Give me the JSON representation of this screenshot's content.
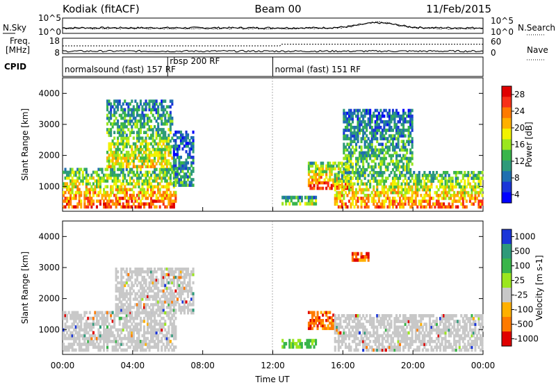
{
  "header": {
    "station": "Kodiak (fitACF)",
    "beam": "Beam 00",
    "date": "11/Feb/2015"
  },
  "summary": {
    "nsky_label": "N.Sky",
    "nsearch_label": "N.Search",
    "freq_label_line1": "Freq.",
    "freq_label_line2": "[MHz]",
    "nave_label": "Nave",
    "cpid_label": "CPID",
    "nsky_ticks": [
      "10^5",
      "10^0"
    ],
    "nsearch_ticks": [
      "10^5",
      "10^0"
    ],
    "freq_ticks": [
      "18",
      "8"
    ],
    "nave_ticks": [
      "60",
      "0"
    ],
    "cpid_segments": [
      {
        "label": "normalsound (fast) 157 RF",
        "start_hour": 0.0,
        "end_hour": 6.0
      },
      {
        "label": "rbsp 200 RF",
        "start_hour": 6.0,
        "end_hour": 12.0
      },
      {
        "label": "normal (fast) 151 RF",
        "start_hour": 12.0,
        "end_hour": 24.0
      }
    ]
  },
  "chart_data": [
    {
      "type": "heatmap",
      "title": "",
      "ylabel": "Slant Range [km]",
      "xlabel": "",
      "ylim": [
        200,
        4500
      ],
      "y_ticks": [
        "1000",
        "2000",
        "3000",
        "4000"
      ],
      "colorbar_label": "Power [dB]",
      "colorbar_ticks": [
        "28",
        "24",
        "20",
        "16",
        "12",
        "8",
        "4"
      ],
      "colorbar_colors": [
        "#e00000",
        "#f83018",
        "#ff7a00",
        "#ffb000",
        "#f2f200",
        "#9be61e",
        "#39b54a",
        "#2e9a7a",
        "#1f6fb0",
        "#1a35d8",
        "#0000ff"
      ],
      "regions": [
        {
          "t0": 0.0,
          "t1": 6.5,
          "r0": 300,
          "r1": 1600,
          "level": 0.85
        },
        {
          "t0": 2.5,
          "t1": 6.3,
          "r0": 1600,
          "r1": 3800,
          "level": 0.6
        },
        {
          "t0": 6.3,
          "t1": 7.5,
          "r0": 1000,
          "r1": 2800,
          "level": 0.35
        },
        {
          "t0": 12.5,
          "t1": 14.5,
          "r0": 400,
          "r1": 700,
          "level": 0.55
        },
        {
          "t0": 14.0,
          "t1": 16.5,
          "r0": 900,
          "r1": 1800,
          "level": 0.9
        },
        {
          "t0": 15.5,
          "t1": 24.0,
          "r0": 300,
          "r1": 1500,
          "level": 0.8
        },
        {
          "t0": 16.0,
          "t1": 20.0,
          "r0": 1500,
          "r1": 3500,
          "level": 0.45
        }
      ]
    },
    {
      "type": "heatmap",
      "title": "",
      "ylabel": "Slant Range [km]",
      "xlabel": "Time UT",
      "ylim": [
        200,
        4500
      ],
      "y_ticks": [
        "1000",
        "2000",
        "3000",
        "4000"
      ],
      "x_ticks": [
        "00:00",
        "04:00",
        "08:00",
        "12:00",
        "16:00",
        "20:00",
        "00:00"
      ],
      "colorbar_label": "Velocity [m s-1]",
      "colorbar_ticks": [
        "1000",
        "500",
        "100",
        "25",
        "-25",
        "-100",
        "-500",
        "-1000"
      ],
      "colorbar_colors": [
        "#1a35d8",
        "#2e9a7a",
        "#39b54a",
        "#9be61e",
        "#c8c8c8",
        "#ffb000",
        "#ff7a00",
        "#e00000"
      ],
      "regions": [
        {
          "t0": 0.0,
          "t1": 6.5,
          "r0": 300,
          "r1": 1600,
          "level": "ground"
        },
        {
          "t0": 3.0,
          "t1": 7.5,
          "r0": 1500,
          "r1": 3000,
          "level": "ground"
        },
        {
          "t0": 12.5,
          "t1": 14.5,
          "r0": 400,
          "r1": 700,
          "level": "positive"
        },
        {
          "t0": 14.0,
          "t1": 15.5,
          "r0": 1000,
          "r1": 1600,
          "level": "negative"
        },
        {
          "t0": 15.5,
          "t1": 24.0,
          "r0": 300,
          "r1": 1500,
          "level": "ground"
        },
        {
          "t0": 16.5,
          "t1": 17.5,
          "r0": 3200,
          "r1": 3500,
          "level": "negative"
        }
      ]
    }
  ]
}
